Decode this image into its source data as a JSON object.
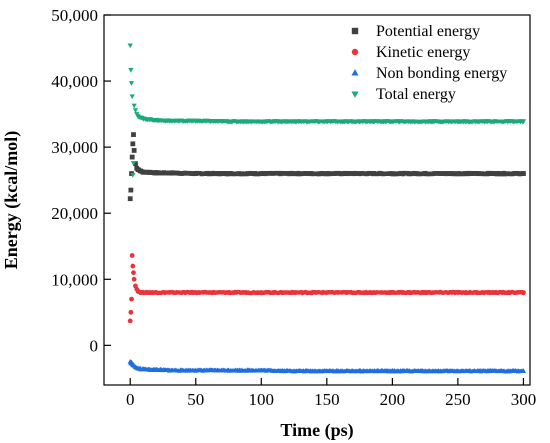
{
  "chart_data": {
    "type": "scatter",
    "xlabel": "Time (ps)",
    "ylabel": "Energy (kcal/mol)",
    "xlim": [
      -20,
      305
    ],
    "ylim": [
      -6000,
      50000
    ],
    "xticks": [
      0,
      50,
      100,
      150,
      200,
      250,
      300
    ],
    "xtick_labels": [
      "0",
      "50",
      "100",
      "150",
      "200",
      "250",
      "300"
    ],
    "yticks": [
      0,
      10000,
      20000,
      30000,
      40000,
      50000
    ],
    "ytick_labels": [
      "0",
      "10,000",
      "20,000",
      "30,000",
      "40,000",
      "50,000"
    ],
    "grid": false,
    "legend_position": "top-right",
    "series": [
      {
        "name": "Potential energy",
        "marker": "square",
        "color": "#404040",
        "x": [
          0,
          0.5,
          1,
          1.5,
          2,
          2.5,
          3,
          4,
          5,
          6,
          8,
          10,
          15,
          20,
          30,
          50,
          75,
          100,
          125,
          150,
          175,
          200,
          225,
          250,
          275,
          300
        ],
        "y": [
          22200,
          23500,
          26000,
          28500,
          30500,
          31900,
          29500,
          27500,
          26800,
          26600,
          26400,
          26200,
          26200,
          26100,
          26100,
          26000,
          26000,
          26000,
          26000,
          26000,
          26000,
          26000,
          26000,
          26000,
          26000,
          26000
        ]
      },
      {
        "name": "Kinetic energy",
        "marker": "circle",
        "color": "#e8343a",
        "x": [
          0,
          0.5,
          1,
          1.5,
          2,
          2.5,
          3,
          4,
          5,
          6,
          8,
          10,
          15,
          20,
          30,
          50,
          75,
          100,
          125,
          150,
          175,
          200,
          225,
          250,
          275,
          300
        ],
        "y": [
          3700,
          5000,
          7000,
          13600,
          12000,
          11000,
          10000,
          9000,
          8500,
          8200,
          8000,
          8000,
          8000,
          8000,
          8000,
          8000,
          8000,
          8000,
          8000,
          8000,
          8000,
          8000,
          8000,
          8000,
          8000,
          8000
        ]
      },
      {
        "name": "Non bonding energy",
        "marker": "triangle-up",
        "color": "#1f6fe0",
        "x": [
          0,
          0.5,
          1,
          1.5,
          2,
          2.5,
          3,
          4,
          5,
          6,
          8,
          10,
          15,
          20,
          30,
          50,
          75,
          100,
          125,
          150,
          175,
          200,
          225,
          250,
          275,
          300
        ],
        "y": [
          -2500,
          -2700,
          -2600,
          -2800,
          -2900,
          -3000,
          -3100,
          -3300,
          -3400,
          -3500,
          -3600,
          -3600,
          -3700,
          -3700,
          -3800,
          -3800,
          -3800,
          -3800,
          -3900,
          -3900,
          -3900,
          -3900,
          -3900,
          -3900,
          -3900,
          -3900
        ]
      },
      {
        "name": "Total energy",
        "marker": "triangle-down",
        "color": "#1aab7a",
        "x": [
          0,
          0.5,
          1,
          1.5,
          2,
          2.5,
          3,
          4,
          5,
          6,
          8,
          10,
          15,
          20,
          30,
          50,
          75,
          100,
          125,
          150,
          175,
          200,
          225,
          250,
          275,
          300
        ],
        "y": [
          45400,
          41700,
          39700,
          37700,
          25800,
          27600,
          36300,
          35600,
          35000,
          34700,
          34500,
          34300,
          34200,
          34100,
          34000,
          34000,
          33900,
          33900,
          33900,
          33900,
          33900,
          33900,
          33900,
          33900,
          33900,
          33900
        ]
      }
    ]
  }
}
